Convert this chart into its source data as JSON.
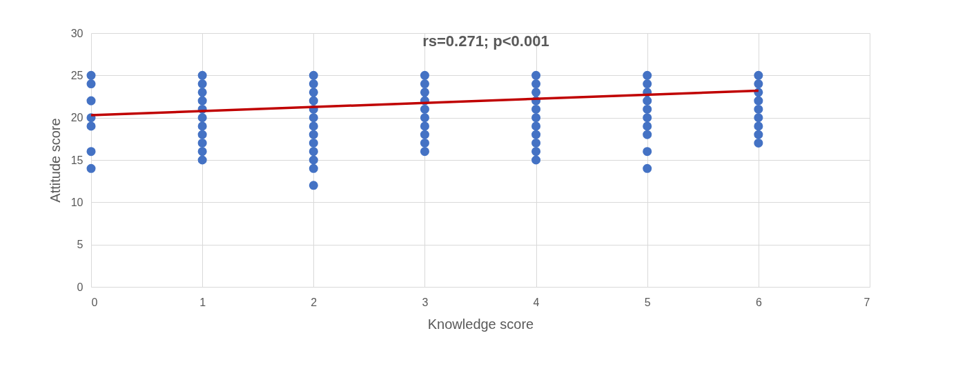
{
  "chart_data": {
    "type": "scatter",
    "xlabel": "Knowledge score",
    "ylabel": "Attitude score",
    "annotations": [
      "rs=0.271; p<0.001"
    ],
    "xlim": [
      0,
      7
    ],
    "xticks": [
      0,
      1,
      2,
      3,
      4,
      5,
      6,
      7
    ],
    "ylim": [
      0,
      30
    ],
    "yticks": [
      0,
      5,
      10,
      15,
      20,
      25,
      30
    ],
    "grid": true,
    "marker": "circle",
    "series": [
      {
        "color": "#4472c4",
        "x": [
          0,
          0,
          0,
          0,
          0,
          0,
          0,
          1,
          1,
          1,
          1,
          1,
          1,
          1,
          1,
          1,
          1,
          1,
          2,
          2,
          2,
          2,
          2,
          2,
          2,
          2,
          2,
          2,
          2,
          2,
          2,
          3,
          3,
          3,
          3,
          3,
          3,
          3,
          3,
          3,
          3,
          4,
          4,
          4,
          4,
          4,
          4,
          4,
          4,
          4,
          4,
          4,
          5,
          5,
          5,
          5,
          5,
          5,
          5,
          5,
          5,
          5,
          6,
          6,
          6,
          6,
          6,
          6,
          6,
          6,
          6
        ],
        "values": [
          25,
          24,
          22,
          20,
          19,
          16,
          14,
          25,
          24,
          23,
          22,
          21,
          20,
          19,
          18,
          17,
          16,
          15,
          25,
          24,
          23,
          22,
          21,
          20,
          19,
          18,
          17,
          16,
          15,
          14,
          12,
          25,
          24,
          23,
          22,
          21,
          20,
          19,
          18,
          17,
          16,
          25,
          24,
          23,
          22,
          21,
          20,
          19,
          18,
          17,
          16,
          15,
          25,
          24,
          23,
          22,
          21,
          20,
          19,
          18,
          16,
          14,
          25,
          24,
          23,
          22,
          21,
          20,
          19,
          18,
          17
        ]
      },
      {
        "type": "line",
        "marker": "none",
        "color": "#c00000",
        "x": [
          0,
          6
        ],
        "values": [
          20.3,
          23.2
        ]
      }
    ]
  }
}
